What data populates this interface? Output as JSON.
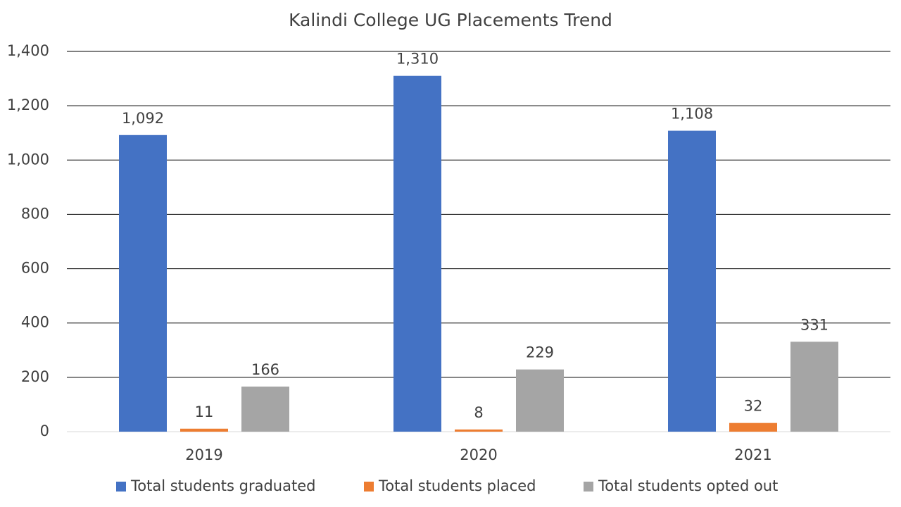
{
  "chart_data": {
    "type": "bar",
    "title": "Kalindi College UG Placements Trend",
    "categories": [
      "2019",
      "2020",
      "2021"
    ],
    "series": [
      {
        "name": "Total students graduated",
        "color": "#4472c4",
        "values": [
          1092,
          1310,
          1108
        ],
        "value_labels": [
          "1,092",
          "1,310",
          "1,108"
        ]
      },
      {
        "name": "Total students placed",
        "color": "#ed7d31",
        "values": [
          11,
          8,
          32
        ]
      },
      {
        "name": "Total students opted out",
        "color": "#a5a5a5",
        "values": [
          166,
          229,
          331
        ]
      }
    ],
    "ylim": [
      0,
      1400
    ],
    "yticks": [
      0,
      200,
      400,
      600,
      800,
      {
        "value": 1000,
        "label": "1,000"
      },
      {
        "value": 1200,
        "label": "1,200"
      },
      {
        "value": 1400,
        "label": "1,400"
      }
    ],
    "grid": true,
    "legend": "bottom"
  }
}
